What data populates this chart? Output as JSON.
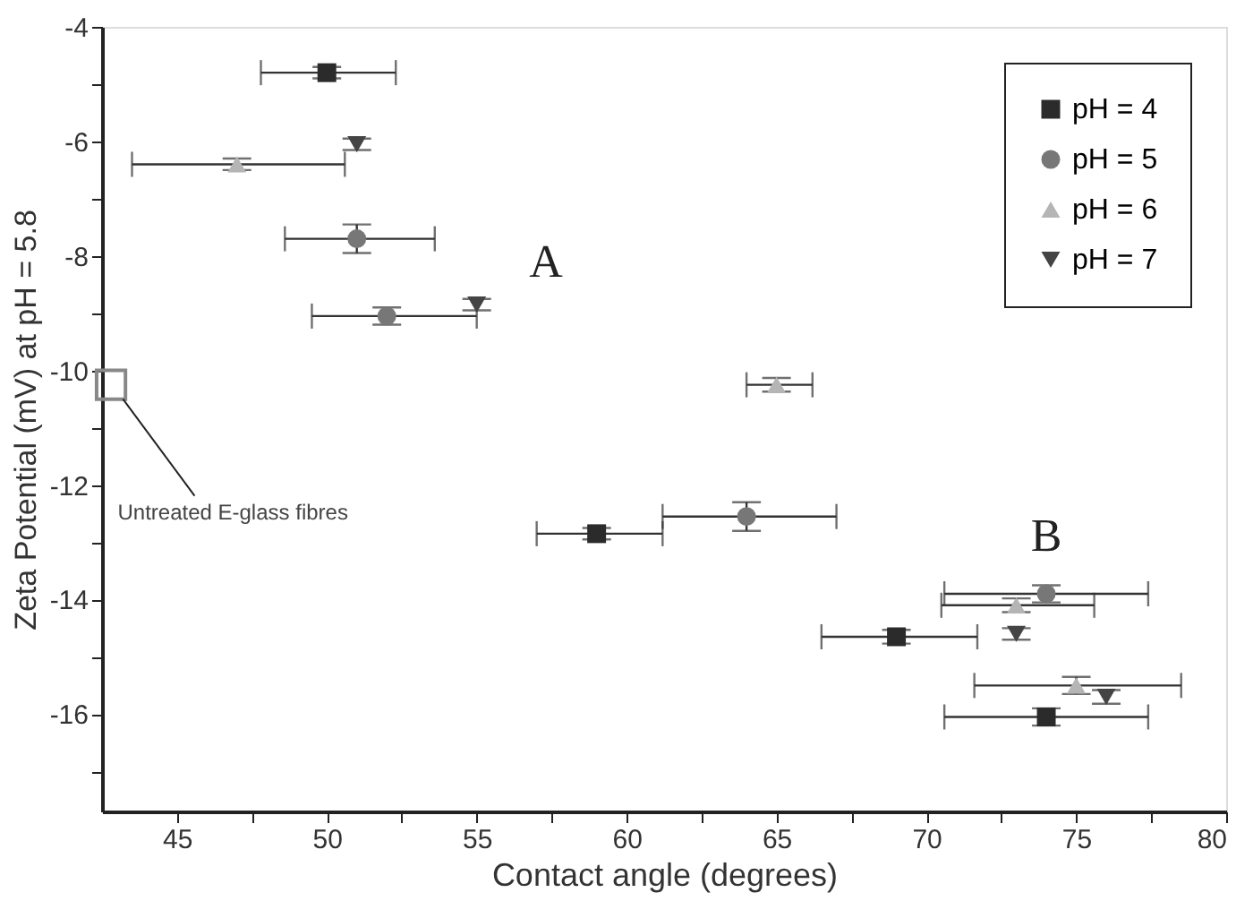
{
  "chart_data": {
    "type": "scatter",
    "xlabel": "Contact angle  (degrees)",
    "ylabel": "Zeta Potential (mV) at pH = 5.8",
    "xlim": [
      42.5,
      80
    ],
    "ylim": [
      -17.7,
      -4
    ],
    "xticks": [
      45,
      {
        "value": 47.5,
        "label": null
      },
      50,
      {
        "value": 52.5,
        "label": null
      },
      55,
      {
        "value": 57.5,
        "label": null
      },
      60,
      {
        "value": 62.5,
        "label": null
      },
      65,
      {
        "value": 67.5,
        "label": null
      },
      70,
      {
        "value": 72.5,
        "label": null
      },
      75,
      {
        "value": 77.5,
        "label": null
      },
      80
    ],
    "yticks": [
      -4,
      {
        "value": -5,
        "label": null
      },
      -6,
      {
        "value": -7,
        "label": null
      },
      -8,
      {
        "value": -9,
        "label": null
      },
      -10,
      {
        "value": -11,
        "label": null
      },
      -12,
      {
        "value": -13,
        "label": null
      },
      -14,
      {
        "value": -15,
        "label": null
      },
      -16,
      {
        "value": -17,
        "label": null
      }
    ],
    "grid": false,
    "legend": "top right",
    "series": [
      {
        "name": "pH = 4",
        "color": "#2b2b2b",
        "marker": "square",
        "x": [
          50,
          59,
          69,
          74
        ],
        "values": [
          -4.8,
          -12.85,
          -14.65,
          -16.05
        ],
        "xerrors": [
          [
            47.8,
            52.3
          ],
          [
            57,
            61.2
          ],
          [
            66.5,
            71.7
          ],
          [
            70.6,
            77.4
          ]
        ],
        "errors": [
          0.1,
          0.1,
          0.12,
          0.15
        ]
      },
      {
        "name": "pH = 5",
        "color": "#777777",
        "marker": "circle",
        "x": [
          51,
          52,
          64,
          74
        ],
        "values": [
          -7.7,
          -9.05,
          -12.55,
          -13.9
        ],
        "xerrors": [
          [
            48.6,
            53.6
          ],
          [
            49.5,
            55
          ],
          [
            61.2,
            67
          ],
          [
            70.6,
            77.4
          ]
        ],
        "errors": [
          0.25,
          0.15,
          0.25,
          0.15
        ]
      },
      {
        "name": "pH = 6",
        "color": "#b5b5b5",
        "marker": "triangle",
        "x": [
          47,
          65,
          73,
          75
        ],
        "values": [
          -6.4,
          -10.25,
          -14.1,
          -15.5
        ],
        "xerrors": [
          [
            43.5,
            50.6
          ],
          [
            64,
            66.2
          ],
          [
            70.5,
            75.6
          ],
          [
            71.6,
            78.5
          ]
        ],
        "errors": [
          0.1,
          0.12,
          0.12,
          0.15
        ]
      },
      {
        "name": "pH = 7",
        "color": "#444444",
        "marker": "triangle-down",
        "x": [
          51,
          55,
          73,
          76
        ],
        "values": [
          -6.05,
          -8.85,
          -14.6,
          -15.7
        ],
        "errors": [
          0.1,
          0.1,
          0.1,
          0.12
        ]
      },
      {
        "color": "#888888",
        "marker": "square",
        "x": [
          42.8
        ],
        "values": [
          -10.25
        ]
      }
    ],
    "annotations": [
      "A",
      "B",
      {
        "text": "Untreated E-glass fibres",
        "x": 43.2,
        "y": -10.5
      }
    ]
  }
}
